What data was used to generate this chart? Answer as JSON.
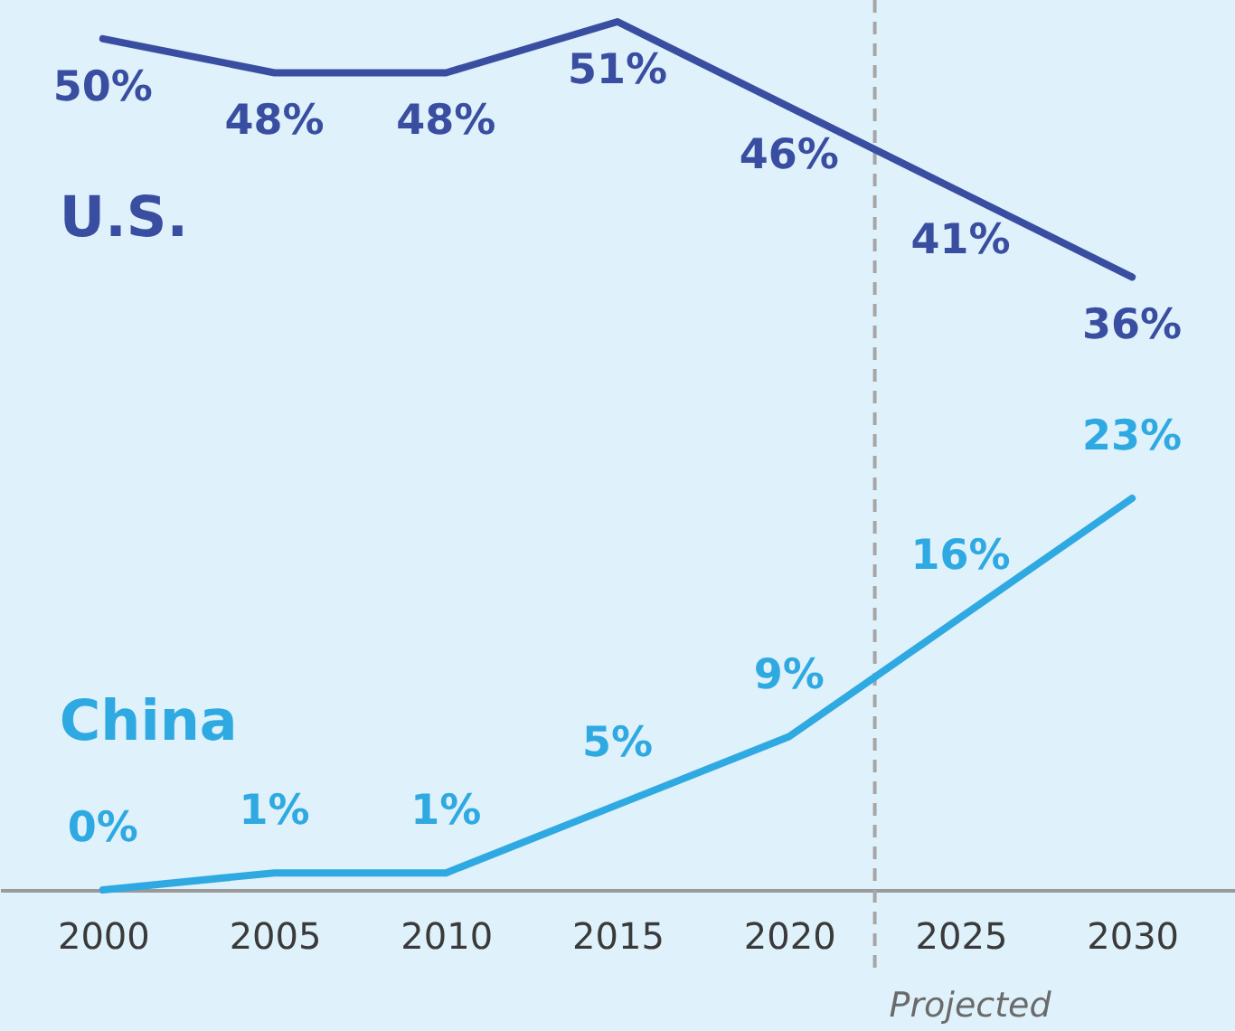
{
  "chart_data": {
    "type": "line",
    "x": [
      2000,
      2005,
      2010,
      2015,
      2020,
      2025,
      2030
    ],
    "xlim": [
      1997,
      2033
    ],
    "xticks": [
      2000,
      2005,
      2010,
      2015,
      2020,
      2025,
      2030
    ],
    "tick_labels": "x",
    "grid": false,
    "line_style": "solid",
    "series": [
      {
        "name": "U.S.",
        "color": "#3a4ea1",
        "values": [
          50,
          48,
          48,
          51,
          46,
          41,
          36
        ],
        "value_labels": [
          "50%",
          "48%",
          "48%",
          "51%",
          "46%",
          "41%",
          "36%"
        ]
      },
      {
        "name": "China",
        "color": "#2fa9e1",
        "values": [
          0,
          1,
          1,
          5,
          9,
          16,
          23
        ],
        "value_labels": [
          "0%",
          "1%",
          "1%",
          "5%",
          "9%",
          "16%",
          "23%"
        ]
      }
    ],
    "ref_lines": [
      {
        "axis": "x",
        "value": 2022.5,
        "label": "Projected",
        "color": "#a6a6a6",
        "line_style": "dashed"
      }
    ]
  }
}
